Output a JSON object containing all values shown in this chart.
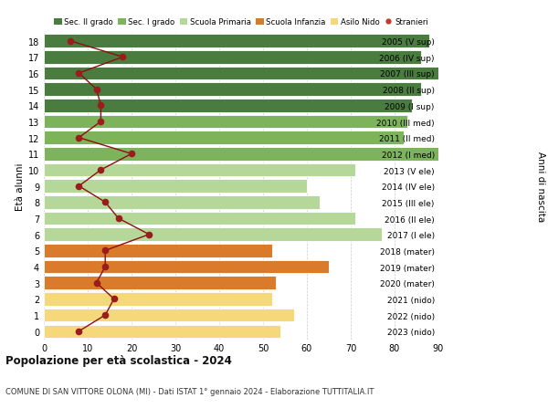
{
  "ages": [
    18,
    17,
    16,
    15,
    14,
    13,
    12,
    11,
    10,
    9,
    8,
    7,
    6,
    5,
    4,
    3,
    2,
    1,
    0
  ],
  "years": [
    "2005 (V sup)",
    "2006 (IV sup)",
    "2007 (III sup)",
    "2008 (II sup)",
    "2009 (I sup)",
    "2010 (III med)",
    "2011 (II med)",
    "2012 (I med)",
    "2013 (V ele)",
    "2014 (IV ele)",
    "2015 (III ele)",
    "2016 (II ele)",
    "2017 (I ele)",
    "2018 (mater)",
    "2019 (mater)",
    "2020 (mater)",
    "2021 (nido)",
    "2022 (nido)",
    "2023 (nido)"
  ],
  "bar_values": [
    88,
    86,
    90,
    86,
    84,
    83,
    82,
    90,
    71,
    60,
    63,
    71,
    77,
    52,
    65,
    53,
    52,
    57,
    54
  ],
  "bar_colors": [
    "#4a7c3f",
    "#4a7c3f",
    "#4a7c3f",
    "#4a7c3f",
    "#4a7c3f",
    "#7db35a",
    "#7db35a",
    "#7db35a",
    "#b5d89a",
    "#b5d89a",
    "#b5d89a",
    "#b5d89a",
    "#b5d89a",
    "#d97b2a",
    "#d97b2a",
    "#d97b2a",
    "#f5d87a",
    "#f5d87a",
    "#f5d87a"
  ],
  "stranieri_values": [
    6,
    18,
    8,
    12,
    13,
    13,
    8,
    20,
    13,
    8,
    14,
    17,
    24,
    14,
    14,
    12,
    16,
    14,
    8
  ],
  "legend_labels": [
    "Sec. II grado",
    "Sec. I grado",
    "Scuola Primaria",
    "Scuola Infanzia",
    "Asilo Nido",
    "Stranieri"
  ],
  "legend_colors": [
    "#4a7c3f",
    "#7db35a",
    "#b5d89a",
    "#d97b2a",
    "#f5d87a",
    "#c0392b"
  ],
  "title": "Popolazione per età scolastica - 2024",
  "subtitle": "COMUNE DI SAN VITTORE OLONA (MI) - Dati ISTAT 1° gennaio 2024 - Elaborazione TUTTITALIA.IT",
  "ylabel_left": "Età alunni",
  "ylabel_right": "Anni di nascita",
  "xlim": [
    0,
    90
  ],
  "bar_height": 0.82,
  "stranieri_color": "#9b1c1c",
  "stranieri_line_color": "#8b1010",
  "background_color": "#ffffff",
  "grid_color": "#cccccc"
}
